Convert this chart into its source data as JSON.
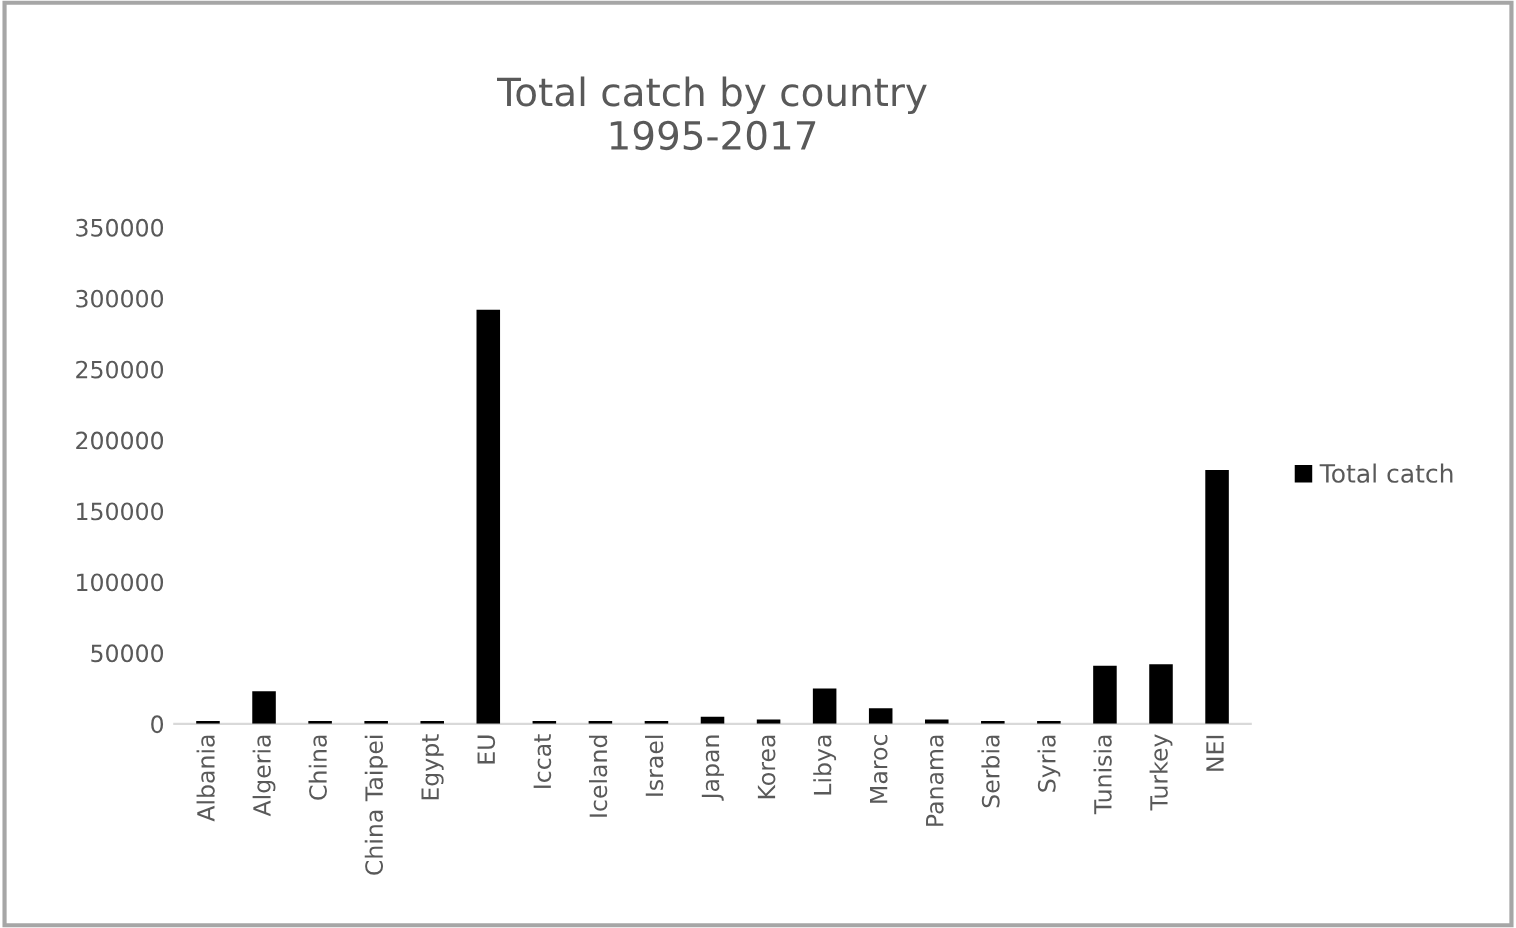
{
  "chart_data": {
    "type": "bar",
    "title": "Total catch by country\n1995-2017",
    "categories": [
      "Albania",
      "Algeria",
      "China",
      "China Taipei",
      "Egypt",
      "EU",
      "Iccat",
      "Iceland",
      "Israel",
      "Japan",
      "Korea",
      "Libya",
      "Maroc",
      "Panama",
      "Serbia",
      "Syria",
      "Tunisia",
      "Turkey",
      "NEI"
    ],
    "series": [
      {
        "name": "Total catch",
        "color": "#000000",
        "values": [
          2000,
          23000,
          2000,
          2000,
          2000,
          292000,
          2000,
          2000,
          2000,
          5000,
          3000,
          25000,
          11000,
          3000,
          2000,
          2000,
          41000,
          42000,
          179000
        ]
      }
    ],
    "ylim": [
      0,
      350000
    ],
    "yticks": [
      0,
      50000,
      100000,
      150000,
      200000,
      250000,
      300000,
      350000
    ],
    "grid": false,
    "legend": "right"
  }
}
